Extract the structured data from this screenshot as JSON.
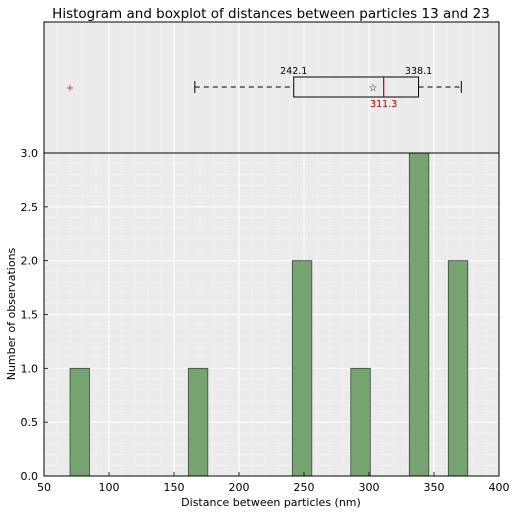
{
  "chart_data": [
    {
      "type": "boxplot",
      "panel": "top",
      "title": "Histogram and boxplot of distances between particles 13 and 23",
      "xlim": [
        50,
        400
      ],
      "q1": 242.1,
      "q3": 338.1,
      "median": 311.3,
      "whisker_low": 166,
      "whisker_high": 371,
      "mean": 303,
      "outliers": [
        70
      ],
      "labels": {
        "q1": "242.1",
        "q3": "338.1",
        "median": "311.3"
      },
      "colors": {
        "box": "#000000",
        "median": "#b00000",
        "outlier": "#c03030",
        "background": "#ebebeb"
      }
    },
    {
      "type": "bar",
      "panel": "bottom",
      "xlabel": "Distance between particles (nm)",
      "ylabel": "Number of observations",
      "xlim": [
        50,
        400
      ],
      "ylim": [
        0,
        3.0
      ],
      "xticks": [
        50,
        100,
        150,
        200,
        250,
        300,
        350,
        400
      ],
      "yticks": [
        "0.0",
        "0.5",
        "1.0",
        "1.5",
        "2.0",
        "2.5",
        "3.0"
      ],
      "bin_width": 15,
      "bins": [
        {
          "x": 70,
          "count": 1
        },
        {
          "x": 161,
          "count": 1
        },
        {
          "x": 241,
          "count": 2
        },
        {
          "x": 286,
          "count": 1
        },
        {
          "x": 331,
          "count": 3
        },
        {
          "x": 361,
          "count": 2
        }
      ],
      "grid": true,
      "colors": {
        "bar": "#75a470",
        "bar_edge": "#3b4a3a",
        "background": "#ebebeb",
        "grid": "#ffffff"
      }
    }
  ]
}
